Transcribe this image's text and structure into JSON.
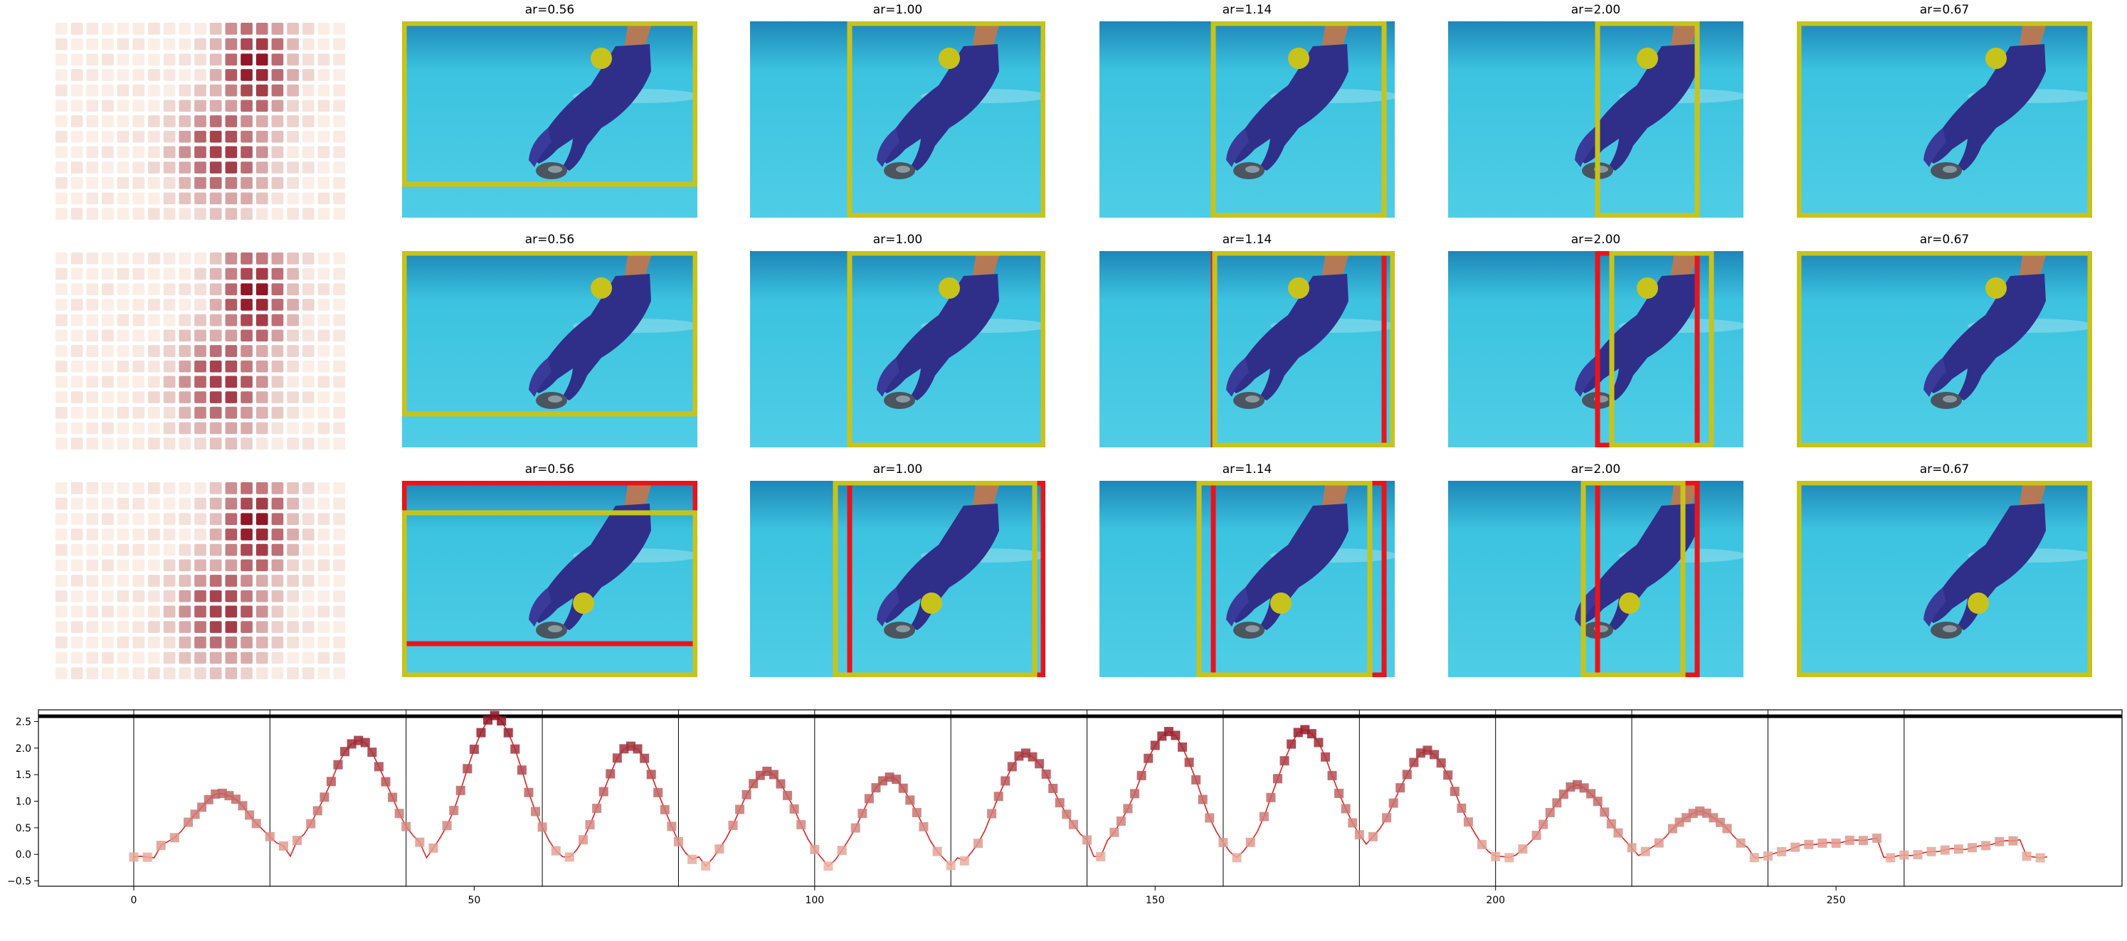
{
  "panel_rows": [
    {
      "titles": [
        "ar=0.56",
        "ar=1.00",
        "ar=1.14",
        "ar=2.00",
        "ar=0.67"
      ],
      "dot": "top"
    },
    {
      "titles": [
        "ar=0.56",
        "ar=1.00",
        "ar=1.14",
        "ar=2.00",
        "ar=0.67"
      ],
      "dot": "top"
    },
    {
      "titles": [
        "ar=0.56",
        "ar=1.00",
        "ar=1.14",
        "ar=2.00",
        "ar=0.67"
      ],
      "dot": "bottom"
    }
  ],
  "colors": {
    "crop_box_yellow": "#c8c31a",
    "crop_box_red": "#e8141c",
    "water": "#3cc3df",
    "glove": "#2f2f8a",
    "heat_low": "#fbeee6",
    "heat_high": "#8e1020"
  },
  "icons": {
    "keypoint": "yellow-dot",
    "heatmap_cell": "rounded-square"
  },
  "chart_data": {
    "type": "line",
    "xlim": [
      -14,
      292
    ],
    "ylim": [
      -0.6,
      2.72
    ],
    "xticks": [
      0,
      50,
      100,
      150,
      200,
      250
    ],
    "yticks": [
      -0.5,
      0.0,
      0.5,
      1.0,
      1.5,
      2.0,
      2.5
    ],
    "vertical_lines": [
      0,
      20,
      40,
      60,
      80,
      100,
      120,
      140,
      160,
      180,
      200,
      220,
      240,
      260
    ],
    "horizontal_line": 2.6,
    "series": [
      {
        "color": "#e0221e",
        "peaks": [
          {
            "x": 13,
            "y": 1.15,
            "base_left": 0.05,
            "base_right": 0.05
          },
          {
            "x": 33,
            "y": 2.15,
            "base_left": 0.05,
            "base_right": 0.0
          },
          {
            "x": 53,
            "y": 2.6,
            "base_left": -0.15,
            "base_right": -0.2
          },
          {
            "x": 73,
            "y": 2.05,
            "base_left": -0.3,
            "base_right": -0.35
          },
          {
            "x": 93,
            "y": 1.55,
            "base_left": -0.4,
            "base_right": -0.4
          },
          {
            "x": 111,
            "y": 1.45,
            "base_left": -0.4,
            "base_right": -0.4
          },
          {
            "x": 131,
            "y": 1.9,
            "base_left": -0.35,
            "base_right": 0.1
          },
          {
            "x": 152,
            "y": 2.3,
            "base_left": 0.05,
            "base_right": -0.2
          },
          {
            "x": 172,
            "y": 2.35,
            "base_left": -0.2,
            "base_right": 0.0
          },
          {
            "x": 190,
            "y": 1.95,
            "base_left": 0.0,
            "base_right": -0.15
          },
          {
            "x": 212,
            "y": 1.3,
            "base_left": -0.15,
            "base_right": -0.1
          },
          {
            "x": 230,
            "y": 0.8,
            "base_left": -0.1,
            "base_right": -0.1
          },
          {
            "x": 247,
            "y": 0.2,
            "base_left": -0.1,
            "base_right": 0.3
          },
          {
            "x": 268,
            "y": 0.1,
            "base_left": -0.05,
            "base_right": 0.3
          }
        ],
        "end_x": 281
      }
    ]
  }
}
